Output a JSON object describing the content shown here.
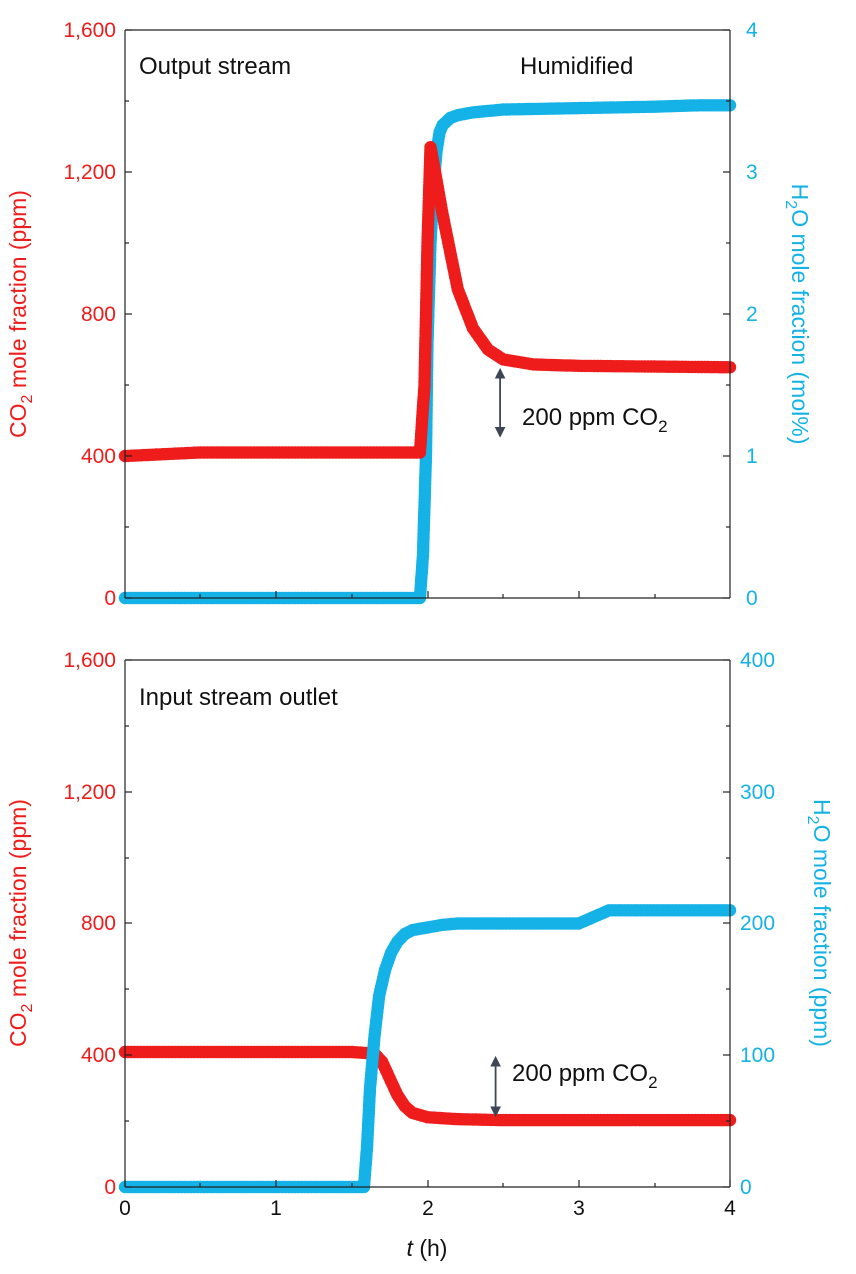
{
  "colors": {
    "co2": "#ef1c1c",
    "h2o": "#14b2e6",
    "axis": "#222222",
    "arrow": "#3d4654"
  },
  "xaxis": {
    "label_var": "t",
    "label_unit": " (h)",
    "ticks": [
      "0",
      "1",
      "2",
      "3",
      "4"
    ]
  },
  "chart_data": [
    {
      "type": "scatter",
      "title": "Output stream",
      "annotation": "Humidified",
      "arrow_label": {
        "main": "200 ppm CO",
        "sub": "2"
      },
      "xlim": [
        0,
        4
      ],
      "y_left": {
        "label_pre": "CO",
        "label_sub": "2",
        "label_post": " mole fraction (ppm)",
        "lim": [
          0,
          1600
        ],
        "ticks": [
          "0",
          "400",
          "800",
          "1,200",
          "1,600"
        ]
      },
      "y_right": {
        "label_pre": "H",
        "label_sub": "2",
        "label_post": "O mole fraction (mol%)",
        "lim": [
          0,
          4
        ],
        "ticks": [
          "0",
          "1",
          "2",
          "3",
          "4"
        ]
      },
      "arrow": {
        "x": 2.48,
        "y_from": 650,
        "y_to": 450
      },
      "series": [
        {
          "name": "CO2",
          "axis": "left",
          "color": "#ef1c1c",
          "x": [
            0,
            0.5,
            1.0,
            1.5,
            1.95,
            1.98,
            2.0,
            2.02,
            2.05,
            2.1,
            2.2,
            2.3,
            2.4,
            2.5,
            2.7,
            3.0,
            3.5,
            4.0
          ],
          "y": [
            400,
            410,
            410,
            410,
            410,
            600,
            1000,
            1270,
            1200,
            1080,
            870,
            760,
            700,
            672,
            658,
            654,
            652,
            650
          ]
        },
        {
          "name": "H2O",
          "axis": "right",
          "color": "#14b2e6",
          "x": [
            0,
            0.5,
            1.0,
            1.5,
            1.95,
            1.97,
            1.99,
            2.0,
            2.02,
            2.04,
            2.06,
            2.08,
            2.1,
            2.15,
            2.2,
            2.3,
            2.5,
            3.0,
            3.5,
            3.8,
            4.0
          ],
          "y": [
            0,
            0,
            0,
            0,
            0,
            0.3,
            1.0,
            1.8,
            2.5,
            2.9,
            3.15,
            3.28,
            3.33,
            3.38,
            3.4,
            3.42,
            3.44,
            3.45,
            3.46,
            3.47,
            3.47
          ]
        }
      ]
    },
    {
      "type": "scatter",
      "title": "Input stream outlet",
      "arrow_label": {
        "main": "200 ppm CO",
        "sub": "2"
      },
      "xlim": [
        0,
        4
      ],
      "y_left": {
        "label_pre": "CO",
        "label_sub": "2",
        "label_post": " mole fraction (ppm)",
        "lim": [
          0,
          1600
        ],
        "ticks": [
          "0",
          "400",
          "800",
          "1,200",
          "1,600"
        ]
      },
      "y_right": {
        "label_pre": "H",
        "label_sub": "2",
        "label_post": "O mole fraction (ppm)",
        "lim": [
          0,
          400
        ],
        "ticks": [
          "0",
          "100",
          "200",
          "300",
          "400"
        ]
      },
      "arrow": {
        "x": 2.45,
        "y_from": 400,
        "y_to": 210
      },
      "series": [
        {
          "name": "CO2",
          "axis": "left",
          "color": "#ef1c1c",
          "x": [
            0,
            0.5,
            1.0,
            1.5,
            1.65,
            1.7,
            1.75,
            1.8,
            1.85,
            1.9,
            2.0,
            2.2,
            2.5,
            3.0,
            3.5,
            4.0
          ],
          "y": [
            410,
            410,
            410,
            410,
            405,
            380,
            330,
            280,
            245,
            225,
            212,
            206,
            203,
            203,
            203,
            203
          ]
        },
        {
          "name": "H2O",
          "axis": "right",
          "color": "#14b2e6",
          "x": [
            0,
            0.5,
            1.0,
            1.5,
            1.58,
            1.6,
            1.62,
            1.65,
            1.68,
            1.72,
            1.76,
            1.8,
            1.85,
            1.9,
            2.0,
            2.1,
            2.2,
            2.5,
            3.0,
            3.2,
            3.6,
            4.0
          ],
          "y": [
            0,
            0,
            0,
            0,
            0,
            30,
            75,
            115,
            145,
            165,
            178,
            186,
            192,
            195,
            197,
            199,
            200,
            200,
            200,
            210,
            210,
            210
          ]
        }
      ]
    }
  ]
}
